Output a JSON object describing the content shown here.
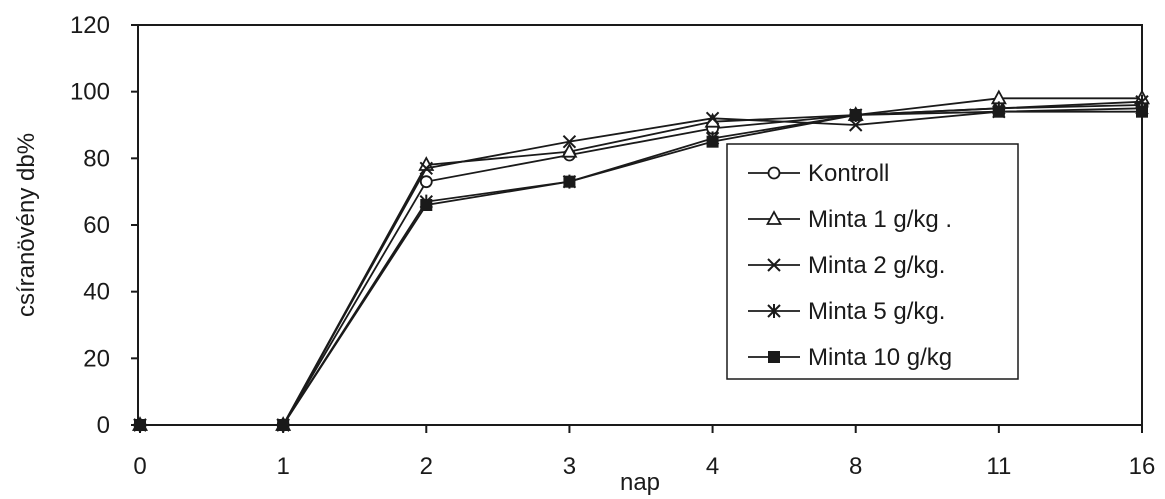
{
  "chart_data": {
    "type": "line",
    "title": "",
    "xlabel": "nap",
    "ylabel": "csíranövény db%",
    "categories": [
      "0",
      "1",
      "2",
      "3",
      "4",
      "8",
      "11",
      "16"
    ],
    "ylim": [
      0,
      120
    ],
    "yticks": [
      "0",
      "20",
      "40",
      "60",
      "80",
      "100",
      "120"
    ],
    "grid": false,
    "legend_position": "center-right",
    "series": [
      {
        "name": "Kontroll",
        "marker": "circle-open",
        "values": [
          0,
          0,
          73,
          81,
          89,
          93,
          95,
          96
        ]
      },
      {
        "name": "Minta 1 g/kg .",
        "marker": "triangle-open",
        "values": [
          0,
          0,
          78,
          82,
          91,
          93,
          98,
          98
        ]
      },
      {
        "name": "Minta 2 g/kg.",
        "marker": "x",
        "values": [
          0,
          0,
          77,
          85,
          92,
          90,
          94,
          95
        ]
      },
      {
        "name": "Minta 5 g/kg.",
        "marker": "asterisk",
        "values": [
          0,
          0,
          67,
          73,
          86,
          93,
          95,
          97
        ]
      },
      {
        "name": "Minta 10 g/kg",
        "marker": "square-filled",
        "values": [
          0,
          0,
          66,
          73,
          85,
          93,
          94,
          94
        ]
      }
    ]
  }
}
